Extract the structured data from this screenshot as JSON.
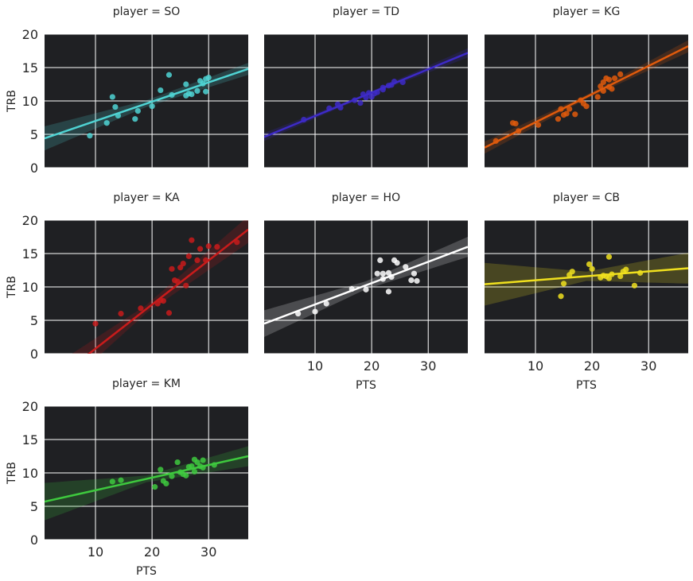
{
  "figure": {
    "background": "#ffffff",
    "panel_background": "#1f2023",
    "grid_color": "#ffffff"
  },
  "chart_data": {
    "type": "scatter",
    "layout": "facet-grid",
    "facet_variable": "player",
    "xlabel": "PTS",
    "ylabel": "TRB",
    "xlim": [
      1,
      37
    ],
    "ylim": [
      0,
      20
    ],
    "x_ticks": [
      10,
      20,
      30
    ],
    "y_ticks": [
      0,
      5,
      10,
      15,
      20
    ],
    "grid": true,
    "regression": "linear fit with 95% confidence band",
    "panels": [
      {
        "title": "player = SO",
        "color": "#4fd3d3",
        "fit": {
          "x0": 1,
          "y0": 4.4,
          "x1": 37,
          "y1": 14.8
        },
        "band_halfwidth": {
          "x0": 1.8,
          "xmid": 0.5,
          "x1": 0.9
        },
        "points": [
          [
            9,
            4.8
          ],
          [
            12,
            6.7
          ],
          [
            13,
            10.6
          ],
          [
            13.5,
            9.1
          ],
          [
            14,
            7.8
          ],
          [
            17,
            7.3
          ],
          [
            17.5,
            8.5
          ],
          [
            20,
            9.2
          ],
          [
            21.5,
            11.6
          ],
          [
            23,
            13.9
          ],
          [
            23.5,
            10.9
          ],
          [
            26,
            12.5
          ],
          [
            26,
            10.8
          ],
          [
            26.5,
            11.1
          ],
          [
            27,
            11
          ],
          [
            28,
            11.5
          ],
          [
            28.5,
            13
          ],
          [
            29,
            12.6
          ],
          [
            29.5,
            11.4
          ],
          [
            29.5,
            13.3
          ],
          [
            30,
            13.5
          ]
        ]
      },
      {
        "title": "player = TD",
        "color": "#3d2ac7",
        "fit": {
          "x0": 1,
          "y0": 4.6,
          "x1": 37,
          "y1": 17.2
        },
        "band_halfwidth": {
          "x0": 0.6,
          "xmid": 0.2,
          "x1": 0.7
        },
        "points": [
          [
            8,
            7.2
          ],
          [
            12.5,
            8.9
          ],
          [
            14,
            9.5
          ],
          [
            14.5,
            9
          ],
          [
            17,
            10.1
          ],
          [
            18,
            9.7
          ],
          [
            18.5,
            11
          ],
          [
            19,
            10.5
          ],
          [
            19.5,
            11.2
          ],
          [
            20,
            10.6
          ],
          [
            20.5,
            11.1
          ],
          [
            21,
            11.3
          ],
          [
            22,
            12
          ],
          [
            22,
            11.7
          ],
          [
            23,
            12.3
          ],
          [
            23.5,
            12.4
          ],
          [
            24,
            12.9
          ],
          [
            25.5,
            12.8
          ]
        ]
      },
      {
        "title": "player = KG",
        "color": "#e05a0c",
        "fit": {
          "x0": 1,
          "y0": 3,
          "x1": 37,
          "y1": 18.2
        },
        "band_halfwidth": {
          "x0": 0.9,
          "xmid": 0.3,
          "x1": 0.9
        },
        "points": [
          [
            3,
            4
          ],
          [
            6,
            6.7
          ],
          [
            6.5,
            6.6
          ],
          [
            7,
            5.5
          ],
          [
            10.5,
            6.4
          ],
          [
            14,
            7.3
          ],
          [
            14.5,
            8.8
          ],
          [
            15,
            7.9
          ],
          [
            15.5,
            8.1
          ],
          [
            16,
            8.8
          ],
          [
            17,
            8
          ],
          [
            18,
            10.1
          ],
          [
            18.5,
            9.6
          ],
          [
            19,
            9.2
          ],
          [
            21,
            10.6
          ],
          [
            21.5,
            12.2
          ],
          [
            22,
            11.5
          ],
          [
            22,
            12.8
          ],
          [
            22.5,
            13.4
          ],
          [
            23,
            12.1
          ],
          [
            23,
            13.2
          ],
          [
            23.5,
            11.8
          ],
          [
            24,
            13.4
          ],
          [
            25,
            14
          ]
        ]
      },
      {
        "title": "player = KA",
        "color": "#c81b1b",
        "fit": {
          "x0": 1,
          "y0": -5.2,
          "x1": 37,
          "y1": 18.6
        },
        "band_halfwidth": {
          "x0": 2.5,
          "xmid": 0.6,
          "x1": 2
        },
        "points": [
          [
            10,
            4.5
          ],
          [
            14.5,
            6
          ],
          [
            18,
            6.8
          ],
          [
            21,
            7.5
          ],
          [
            21.5,
            8
          ],
          [
            22,
            7.9
          ],
          [
            23,
            6.1
          ],
          [
            23.5,
            12.7
          ],
          [
            24,
            11
          ],
          [
            24.5,
            10.8
          ],
          [
            25,
            12.9
          ],
          [
            25.5,
            13.5
          ],
          [
            26,
            10.2
          ],
          [
            26.5,
            14.6
          ],
          [
            27,
            17
          ],
          [
            28,
            14
          ],
          [
            28.5,
            15.7
          ],
          [
            29.5,
            14
          ],
          [
            30,
            16.1
          ],
          [
            31.5,
            16
          ],
          [
            35,
            16.7
          ]
        ]
      },
      {
        "title": "player = HO",
        "color": "#ffffff",
        "fit": {
          "x0": 1,
          "y0": 4.5,
          "x1": 37,
          "y1": 16
        },
        "band_halfwidth": {
          "x0": 2,
          "xmid": 0.6,
          "x1": 1.5
        },
        "points": [
          [
            7,
            6
          ],
          [
            10,
            6.3
          ],
          [
            12,
            7.5
          ],
          [
            16.5,
            9.7
          ],
          [
            19,
            9.6
          ],
          [
            21,
            12
          ],
          [
            21.5,
            14
          ],
          [
            22,
            11.2
          ],
          [
            22,
            12
          ],
          [
            23,
            12.1
          ],
          [
            23,
            9.3
          ],
          [
            23.5,
            11.5
          ],
          [
            24,
            14
          ],
          [
            24.5,
            13.6
          ],
          [
            26,
            13
          ],
          [
            27,
            11
          ],
          [
            27.5,
            12
          ],
          [
            28,
            10.9
          ]
        ]
      },
      {
        "title": "player = CB",
        "color": "#f0e01e",
        "fit": {
          "x0": 1,
          "y0": 10.4,
          "x1": 37,
          "y1": 12.8
        },
        "band_halfwidth": {
          "x0": 3.2,
          "xmid": 0.7,
          "x1": 2.3
        },
        "points": [
          [
            14.5,
            8.6
          ],
          [
            15,
            10.5
          ],
          [
            16,
            11.8
          ],
          [
            16.5,
            12.3
          ],
          [
            19.5,
            13.4
          ],
          [
            20,
            12.7
          ],
          [
            21.5,
            11.4
          ],
          [
            22,
            11.7
          ],
          [
            22.5,
            11.6
          ],
          [
            23,
            11.3
          ],
          [
            23,
            14.5
          ],
          [
            23.5,
            11.9
          ],
          [
            25,
            11.6
          ],
          [
            25.5,
            12.3
          ],
          [
            26,
            12.6
          ],
          [
            27.5,
            10.2
          ],
          [
            28.5,
            12.1
          ]
        ]
      },
      {
        "title": "player = KM",
        "color": "#3ec93e",
        "fit": {
          "x0": 1,
          "y0": 5.7,
          "x1": 37,
          "y1": 12.5
        },
        "band_halfwidth": {
          "x0": 2.8,
          "xmid": 0.5,
          "x1": 1.5
        },
        "points": [
          [
            13,
            8.7
          ],
          [
            14.5,
            8.9
          ],
          [
            20.5,
            7.9
          ],
          [
            21.5,
            10.5
          ],
          [
            22,
            8.8
          ],
          [
            22.5,
            8.4
          ],
          [
            23.5,
            9.5
          ],
          [
            24.5,
            11.6
          ],
          [
            25,
            10.1
          ],
          [
            25.5,
            9.8
          ],
          [
            26,
            9.6
          ],
          [
            26.5,
            10.9
          ],
          [
            27,
            11
          ],
          [
            27.5,
            10.2
          ],
          [
            27.5,
            12
          ],
          [
            28,
            11.6
          ],
          [
            28.5,
            11
          ],
          [
            29,
            11.9
          ],
          [
            29,
            10.8
          ],
          [
            31,
            11.2
          ]
        ]
      }
    ]
  }
}
